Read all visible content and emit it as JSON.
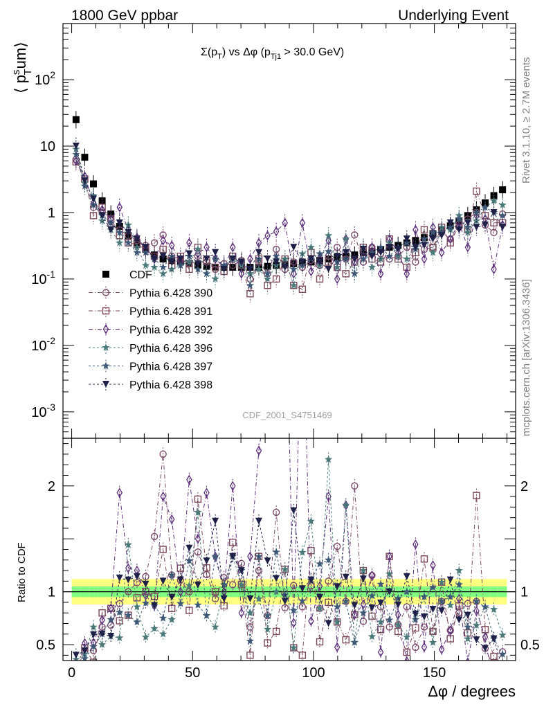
{
  "header": {
    "left": "1800 GeV ppbar",
    "right": "Underlying Event"
  },
  "side": {
    "rivet": "Rivet 3.1.10, ≥ 2.7M events",
    "mcplots": "mcplots.cern.ch [arXiv:1306.3436]"
  },
  "watermark": "CDF_2001_S4751469",
  "main_title": {
    "prefix": "Σ(p",
    "sub1": "T",
    "mid": ") vs Δφ (p",
    "sub2": "Tj1",
    "suffix": " > 30.0 GeV)"
  },
  "ylabel": {
    "pre": "⟨ p",
    "sup": "s",
    "sub": "T",
    "post": "um⟩"
  },
  "xlabel": "Δφ / degrees",
  "ratio_ylabel": "Ratio to CDF",
  "main_yticks": [
    {
      "value": 0.001,
      "base": "10",
      "exp": "-3"
    },
    {
      "value": 0.01,
      "base": "10",
      "exp": "-2"
    },
    {
      "value": 0.1,
      "base": "10",
      "exp": "-1"
    },
    {
      "value": 1,
      "base": "1",
      "exp": ""
    },
    {
      "value": 10,
      "base": "10",
      "exp": ""
    },
    {
      "value": 100,
      "base": "10",
      "exp": "2"
    }
  ],
  "ratio_yticks": [
    {
      "value": 0.5,
      "label": "0.5"
    },
    {
      "value": 1,
      "label": "1"
    },
    {
      "value": 2,
      "label": "2"
    }
  ],
  "xticks": [
    {
      "value": 0,
      "label": "0"
    },
    {
      "value": 50,
      "label": "50"
    },
    {
      "value": 100,
      "label": "100"
    },
    {
      "value": 150,
      "label": "150"
    }
  ],
  "colors": {
    "data": "#000000",
    "p390": "#7b4a6b",
    "p391": "#7a4858",
    "p392": "#5c2e7a",
    "p396": "#4a7a7a",
    "p397": "#3e5a78",
    "p398": "#1f2048",
    "band_outer": "#ffff80",
    "band_inner": "#80ff80"
  },
  "chart_data": {
    "type": "scatter",
    "x_axis": {
      "range": [
        -3.6,
        183.6
      ]
    },
    "main_y_axis": {
      "scale": "log",
      "range": [
        0.0004,
        700
      ]
    },
    "ratio_y_axis": {
      "range": [
        0.35,
        2.45
      ]
    },
    "x": [
      1.8,
      5.4,
      9.0,
      12.6,
      16.2,
      19.8,
      23.4,
      27.0,
      30.6,
      34.2,
      37.8,
      41.4,
      45.0,
      48.6,
      52.2,
      55.8,
      59.4,
      63.0,
      66.6,
      70.2,
      73.8,
      77.4,
      81.0,
      84.6,
      88.2,
      91.8,
      95.4,
      99.0,
      102.6,
      106.2,
      109.8,
      113.4,
      117.0,
      120.6,
      124.2,
      127.8,
      131.4,
      135.0,
      138.6,
      142.2,
      145.8,
      149.4,
      153.0,
      156.6,
      160.2,
      163.8,
      167.4,
      171.0,
      174.6,
      178.2
    ],
    "series": [
      {
        "name": "CDF",
        "marker": "square-filled",
        "values": [
          25.0,
          6.8,
          2.7,
          1.5,
          0.95,
          0.62,
          0.45,
          0.35,
          0.28,
          0.23,
          0.2,
          0.19,
          0.18,
          0.17,
          0.16,
          0.155,
          0.15,
          0.15,
          0.15,
          0.15,
          0.15,
          0.15,
          0.155,
          0.16,
          0.165,
          0.17,
          0.175,
          0.18,
          0.19,
          0.2,
          0.21,
          0.22,
          0.23,
          0.25,
          0.26,
          0.28,
          0.3,
          0.32,
          0.35,
          0.38,
          0.42,
          0.48,
          0.55,
          0.63,
          0.75,
          0.9,
          1.1,
          1.4,
          1.8,
          2.2
        ]
      },
      {
        "name": "Pythia 6.428 390",
        "marker": "circle-open",
        "line": "dash-dot",
        "values": [
          6.3,
          3.0,
          1.2,
          1.0,
          0.65,
          0.55,
          0.45,
          0.38,
          0.32,
          0.35,
          0.46,
          0.22,
          0.2,
          0.17,
          0.22,
          0.18,
          0.14,
          0.17,
          0.16,
          0.19,
          0.1,
          0.18,
          0.12,
          0.28,
          0.14,
          0.18,
          0.15,
          0.19,
          0.16,
          0.22,
          0.3,
          0.2,
          0.46,
          0.18,
          0.3,
          0.24,
          0.2,
          0.22,
          0.3,
          0.18,
          0.28,
          0.3,
          0.5,
          0.4,
          0.6,
          0.8,
          1.0,
          0.65,
          0.5,
          0.95
        ]
      },
      {
        "name": "Pythia 6.428 391",
        "marker": "square-open",
        "line": "dash-dot",
        "values": [
          5.8,
          3.2,
          0.9,
          1.2,
          0.8,
          0.45,
          0.35,
          0.33,
          0.28,
          0.22,
          0.28,
          0.16,
          0.22,
          0.14,
          0.3,
          0.19,
          0.15,
          0.13,
          0.22,
          0.16,
          0.06,
          0.2,
          0.08,
          0.1,
          0.2,
          0.08,
          0.07,
          0.25,
          0.1,
          0.18,
          0.15,
          0.12,
          0.18,
          0.3,
          0.2,
          0.18,
          0.4,
          0.2,
          0.15,
          0.25,
          0.55,
          0.3,
          0.6,
          0.35,
          0.65,
          0.55,
          2.1,
          0.9,
          0.7,
          0.7
        ]
      },
      {
        "name": "Pythia 6.428 392",
        "marker": "diamond-open",
        "line": "dash-dot",
        "values": [
          6.0,
          3.5,
          1.4,
          1.1,
          0.8,
          1.2,
          0.55,
          0.42,
          0.27,
          0.2,
          0.38,
          0.32,
          0.18,
          0.35,
          0.24,
          0.3,
          0.2,
          0.15,
          0.3,
          0.12,
          0.2,
          0.35,
          0.45,
          0.52,
          0.7,
          0.12,
          0.7,
          0.13,
          0.2,
          0.38,
          0.1,
          0.4,
          0.18,
          0.22,
          0.3,
          0.12,
          0.4,
          0.25,
          0.12,
          0.55,
          0.2,
          0.6,
          0.25,
          0.4,
          0.7,
          0.3,
          0.9,
          0.8,
          0.14,
          0.65
        ]
      },
      {
        "name": "Pythia 6.428 396",
        "marker": "star-filled",
        "line": "dash",
        "values": [
          9.0,
          2.8,
          1.8,
          0.75,
          0.55,
          0.35,
          0.65,
          0.3,
          0.16,
          0.15,
          0.12,
          0.14,
          0.16,
          0.18,
          0.28,
          0.12,
          0.1,
          0.16,
          0.2,
          0.16,
          0.12,
          0.14,
          0.1,
          0.16,
          0.2,
          0.08,
          0.24,
          0.3,
          0.16,
          0.45,
          0.15,
          0.4,
          0.12,
          0.3,
          0.15,
          0.2,
          0.35,
          0.22,
          0.2,
          0.3,
          0.4,
          0.25,
          0.6,
          0.55,
          0.9,
          0.5,
          0.75,
          1.2,
          1.5,
          1.3
        ]
      },
      {
        "name": "Pythia 6.428 397",
        "marker": "star-filled",
        "line": "dash",
        "values": [
          7.5,
          2.5,
          1.3,
          0.9,
          0.7,
          0.5,
          0.35,
          0.25,
          0.25,
          0.2,
          0.15,
          0.22,
          0.16,
          0.22,
          0.14,
          0.12,
          0.2,
          0.16,
          0.2,
          0.18,
          0.08,
          0.2,
          0.12,
          0.22,
          0.16,
          0.14,
          0.16,
          0.2,
          0.24,
          0.26,
          0.18,
          0.2,
          0.12,
          0.2,
          0.25,
          0.3,
          0.22,
          0.3,
          0.35,
          0.28,
          0.4,
          0.5,
          0.5,
          0.6,
          0.8,
          0.6,
          1.0,
          1.2,
          1.0,
          0.9
        ]
      },
      {
        "name": "Pythia 6.428 398",
        "marker": "triangle-down-filled",
        "line": "dash",
        "values": [
          10.0,
          3.0,
          1.6,
          0.9,
          0.55,
          0.7,
          0.5,
          0.4,
          0.3,
          0.2,
          0.22,
          0.18,
          0.2,
          0.24,
          0.17,
          0.2,
          0.25,
          0.14,
          0.2,
          0.18,
          0.14,
          0.25,
          0.2,
          0.18,
          0.15,
          0.3,
          0.18,
          0.2,
          0.18,
          0.14,
          0.22,
          0.25,
          0.2,
          0.28,
          0.22,
          0.25,
          0.3,
          0.28,
          0.4,
          0.3,
          0.32,
          0.4,
          0.45,
          0.7,
          0.55,
          0.7,
          0.6,
          0.65,
          1.0,
          0.6
        ]
      }
    ],
    "ratio": {
      "reference": "CDF",
      "band_rel_outer": 0.12,
      "band_rel_inner": 0.05
    }
  }
}
